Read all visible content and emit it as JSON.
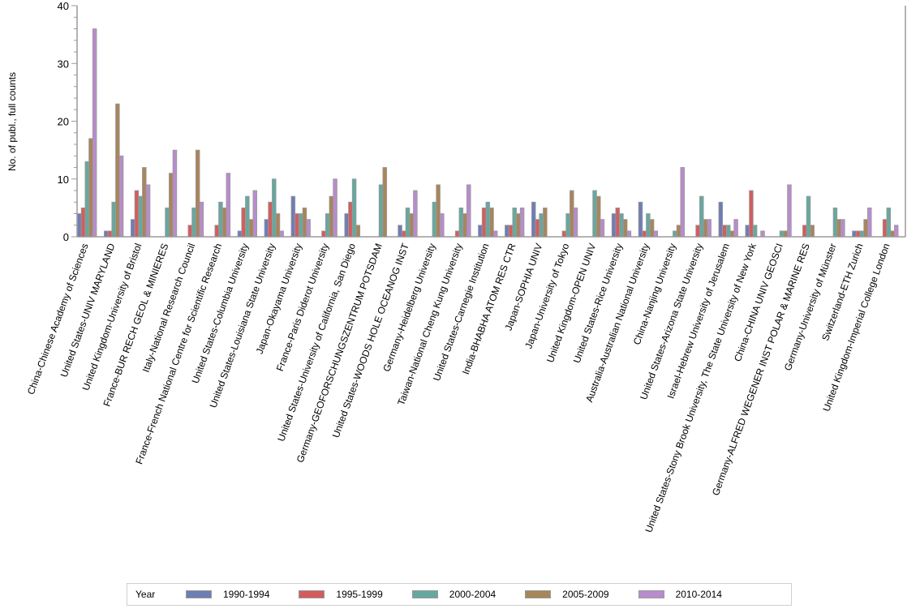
{
  "chart_data": {
    "type": "bar",
    "title": "",
    "xlabel": "",
    "ylabel": "No. of publ., full counts",
    "ylim": [
      0,
      40
    ],
    "yticks": [
      0,
      10,
      20,
      30,
      40
    ],
    "grid": false,
    "legend_title": "Year",
    "legend_position": "bottom",
    "categories": [
      "China-Chinese Academy of Sciences",
      "United States-UNIV MARYLAND",
      "United Kingdom-University of Bristol",
      "France-BUR RECH GEOL & MINIERES",
      "Italy-National Research Council",
      "France-French National Centre for Scientific Research",
      "United States-Columbia University",
      "United States-Louisiana State University",
      "Japan-Okayama University",
      "France-Paris Diderot University",
      "United States-University of California, San Diego",
      "Germany-GEOFORSCHUNGSZENTRUM POTSDAM",
      "United States-WOODS HOLE OCEANOG INST",
      "Germany-Heidelberg University",
      "Taiwan-National Cheng Kung University",
      "United States-Carnegie Institution",
      "India-BHABHA ATOM RES CTR",
      "Japan-SOPHIA UNIV",
      "Japan-University of Tokyo",
      "United Kingdom-OPEN UNIV",
      "United States-Rice University",
      "Australia-Australian National University",
      "China-Nanjing University",
      "United States-Arizona State University",
      "Israel-Hebrew University of Jerusalem",
      "United States-Stony Brook University, The State University of New York",
      "China-CHINA UNIV GEOSCI",
      "Germany-ALFRED WEGENER INST POLAR & MARINE RES",
      "Germany-University of Münster",
      "Switzerland-ETH Zurich",
      "United Kingdom-Imperial College London"
    ],
    "series": [
      {
        "name": "1990-1994",
        "color": "#6f7db5",
        "values": [
          4,
          1,
          3,
          0,
          0,
          0,
          1,
          3,
          7,
          0,
          4,
          0,
          2,
          0,
          0,
          2,
          2,
          6,
          0,
          0,
          4,
          6,
          0,
          0,
          6,
          2,
          0,
          0,
          0,
          1,
          0
        ]
      },
      {
        "name": "1995-1999",
        "color": "#d35d5d",
        "values": [
          5,
          1,
          8,
          0,
          2,
          2,
          5,
          6,
          4,
          1,
          6,
          0,
          1,
          0,
          1,
          5,
          2,
          3,
          1,
          0,
          5,
          1,
          0,
          2,
          2,
          8,
          0,
          2,
          0,
          1,
          3
        ]
      },
      {
        "name": "2000-2004",
        "color": "#66a8a0",
        "values": [
          13,
          6,
          7,
          5,
          5,
          6,
          7,
          10,
          4,
          4,
          10,
          9,
          5,
          6,
          5,
          6,
          5,
          4,
          4,
          8,
          4,
          4,
          1,
          7,
          2,
          2,
          1,
          7,
          5,
          1,
          5
        ]
      },
      {
        "name": "2005-2009",
        "color": "#a8855b",
        "values": [
          17,
          23,
          12,
          11,
          15,
          5,
          3,
          4,
          5,
          7,
          2,
          12,
          4,
          9,
          4,
          5,
          4,
          5,
          8,
          7,
          3,
          3,
          2,
          3,
          1,
          0,
          1,
          2,
          3,
          3,
          1
        ]
      },
      {
        "name": "2010-2014",
        "color": "#b88ccc",
        "values": [
          36,
          14,
          9,
          15,
          6,
          11,
          8,
          1,
          3,
          10,
          0,
          0,
          8,
          4,
          9,
          1,
          5,
          0,
          5,
          3,
          1,
          1,
          12,
          3,
          3,
          1,
          9,
          0,
          3,
          5,
          2
        ]
      }
    ]
  }
}
